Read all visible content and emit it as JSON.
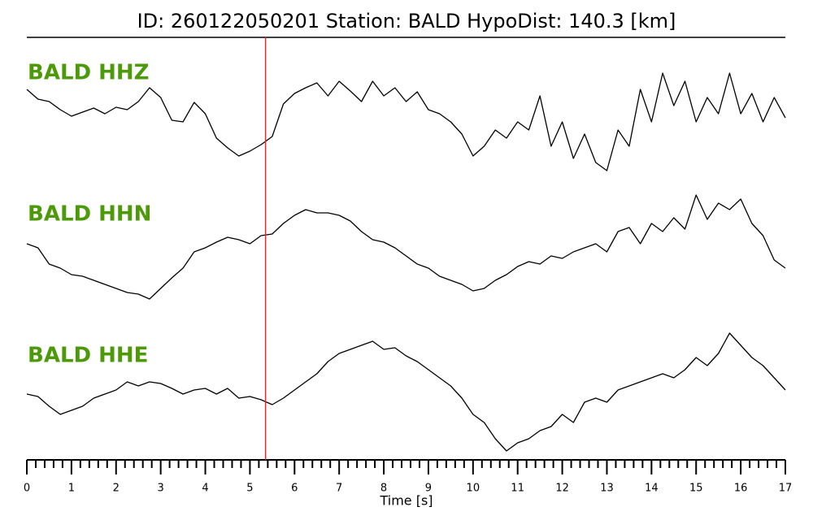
{
  "chart_data": {
    "type": "line",
    "title": "ID: 260122050201   Station: BALD   HypoDist:   140.3 [km]",
    "xlabel": "Time [s]",
    "label_color": "#4c9a0a",
    "pick_time": 5.35,
    "pick_color": "#e8262a",
    "x": [
      0,
      0.25,
      0.5,
      0.75,
      1,
      1.25,
      1.5,
      1.75,
      2,
      2.25,
      2.5,
      2.75,
      3,
      3.25,
      3.5,
      3.75,
      4,
      4.25,
      4.5,
      4.75,
      5,
      5.25,
      5.5,
      5.75,
      6,
      6.25,
      6.5,
      6.75,
      7,
      7.25,
      7.5,
      7.75,
      8,
      8.25,
      8.5,
      8.75,
      9,
      9.25,
      9.5,
      9.75,
      10,
      10.25,
      10.5,
      10.75,
      11,
      11.25,
      11.5,
      11.75,
      12,
      12.25,
      12.5,
      12.75,
      13,
      13.25,
      13.5,
      13.75,
      14,
      14.25,
      14.5,
      14.75,
      15,
      15.25,
      15.5,
      15.75,
      16,
      16.25,
      16.5,
      16.75,
      17
    ],
    "xlim": [
      0,
      17
    ],
    "xticks": [
      0,
      1,
      2,
      3,
      4,
      5,
      6,
      7,
      8,
      9,
      10,
      11,
      12,
      13,
      14,
      15,
      16,
      17
    ],
    "xminorticks": [
      0.2,
      0.4,
      0.6,
      0.8,
      1.2,
      1.4,
      1.6,
      1.8,
      2.2,
      2.4,
      2.6,
      2.8,
      3.2,
      3.4,
      3.6,
      3.8,
      4.2,
      4.4,
      4.6,
      4.8,
      5.2,
      5.4,
      5.6,
      5.8,
      6.2,
      6.4,
      6.6,
      6.8,
      7.2,
      7.4,
      7.6,
      7.8,
      8.2,
      8.4,
      8.6,
      8.8,
      9.2,
      9.4,
      9.6,
      9.8,
      10.2,
      10.4,
      10.6,
      10.8,
      11.2,
      11.4,
      11.6,
      11.8,
      12.2,
      12.4,
      12.6,
      12.8,
      13.2,
      13.4,
      13.6,
      13.8,
      14.2,
      14.4,
      14.6,
      14.8,
      15.2,
      15.4,
      15.6,
      15.8,
      16.2,
      16.4,
      16.6,
      16.8
    ],
    "ylim": [
      -87,
      87
    ],
    "series": [
      {
        "name": "BALD HHZ",
        "color": "#000000",
        "values": [
          37,
          25,
          22,
          12,
          4,
          9,
          14,
          7,
          15,
          12,
          22,
          39,
          27,
          -1,
          -3,
          21,
          7,
          -23,
          -35,
          -45,
          -39,
          -31,
          -21,
          19,
          32,
          39,
          45,
          29,
          47,
          35,
          22,
          47,
          29,
          39,
          22,
          34,
          12,
          7,
          -3,
          -18,
          -45,
          -33,
          -13,
          -23,
          -3,
          -13,
          29,
          -33,
          -3,
          -48,
          -18,
          -53,
          -63,
          -13,
          -33,
          37,
          -3,
          57,
          17,
          47,
          -3,
          27,
          7,
          57,
          7,
          32,
          -3,
          27,
          2
        ]
      },
      {
        "name": "BALD HHN",
        "color": "#000000",
        "values": [
          21,
          16,
          -4,
          -9,
          -17,
          -19,
          -24,
          -29,
          -34,
          -39,
          -41,
          -47,
          -34,
          -21,
          -9,
          11,
          16,
          23,
          29,
          26,
          21,
          31,
          33,
          46,
          56,
          63,
          59,
          59,
          56,
          49,
          36,
          26,
          23,
          16,
          6,
          -4,
          -9,
          -19,
          -24,
          -29,
          -37,
          -34,
          -24,
          -17,
          -7,
          -1,
          -4,
          6,
          3,
          11,
          16,
          21,
          11,
          36,
          41,
          21,
          46,
          36,
          53,
          39,
          81,
          51,
          71,
          63,
          76,
          46,
          31,
          1,
          -9
        ]
      },
      {
        "name": "BALD HHE",
        "color": "#000000",
        "values": [
          10,
          7,
          -5,
          -15,
          -10,
          -5,
          5,
          10,
          15,
          25,
          20,
          25,
          23,
          17,
          10,
          15,
          17,
          10,
          17,
          5,
          7,
          3,
          -3,
          5,
          15,
          25,
          35,
          50,
          60,
          65,
          70,
          75,
          65,
          67,
          57,
          50,
          40,
          30,
          20,
          5,
          -15,
          -25,
          -45,
          -60,
          -50,
          -45,
          -35,
          -30,
          -15,
          -25,
          0,
          5,
          0,
          15,
          20,
          25,
          30,
          35,
          30,
          40,
          55,
          45,
          60,
          85,
          70,
          55,
          45,
          30,
          15
        ]
      }
    ]
  }
}
